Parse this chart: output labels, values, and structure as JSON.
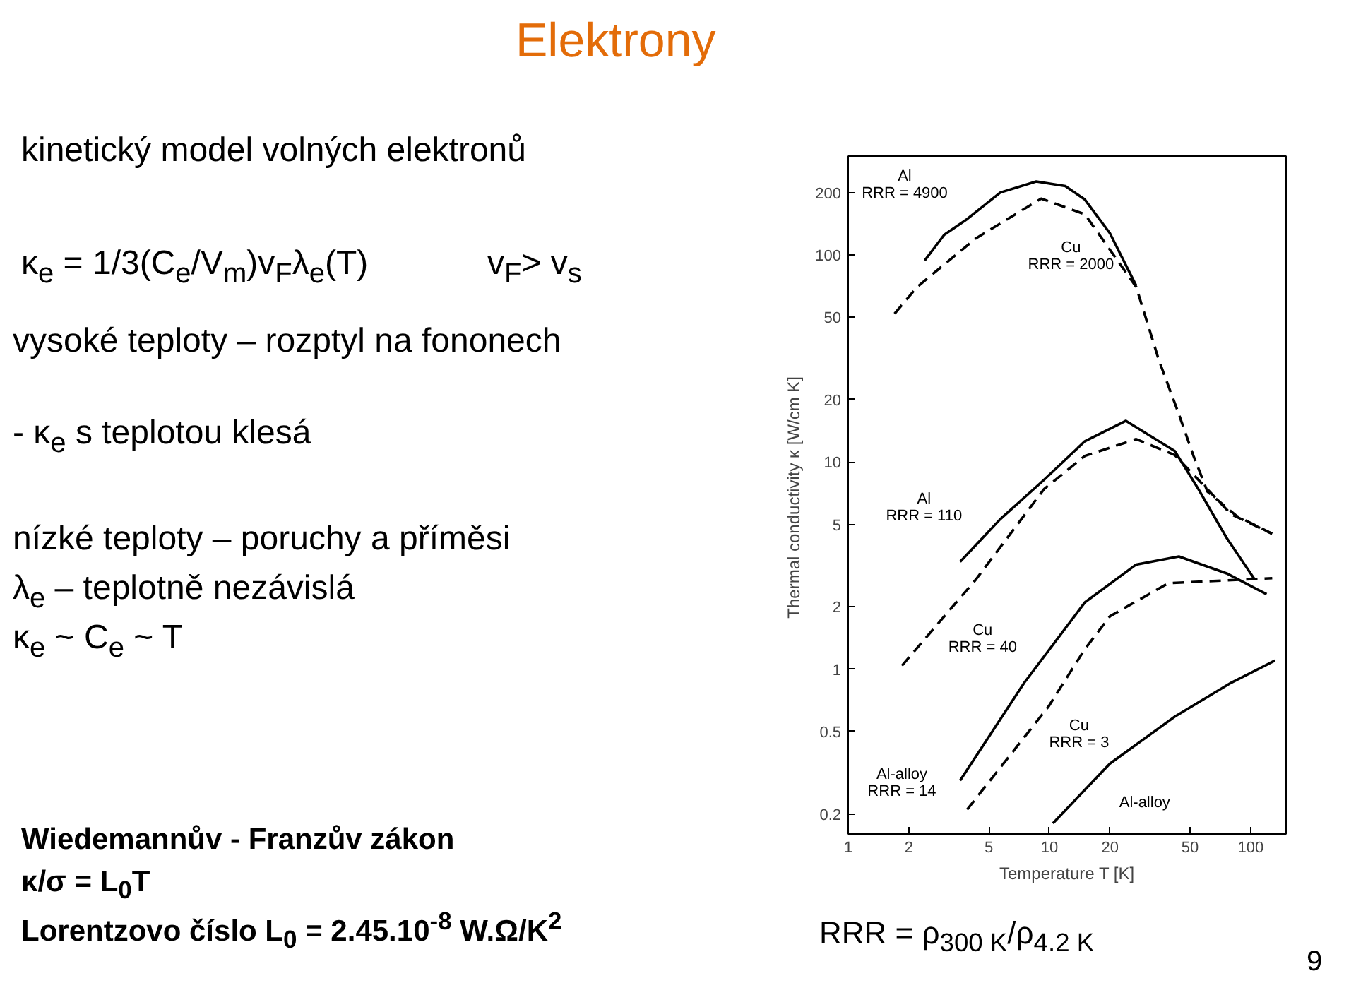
{
  "chart_data": {
    "type": "line",
    "title": "Elektrony",
    "xlabel": "Temperature T [K]",
    "ylabel": "Thermal conductivity κ  [W/cm K]",
    "log": "xy",
    "grid": false,
    "xlim": [
      1,
      150
    ],
    "ylim": [
      0.16,
      300
    ],
    "xticks": [
      1,
      2,
      5,
      10,
      20,
      50,
      100
    ],
    "yticks": [
      0.2,
      0.5,
      1,
      2,
      5,
      10,
      20,
      50,
      100,
      200
    ],
    "series": [
      {
        "name": "Al\nRRR = 4900",
        "color": "#000000",
        "line_style": "solid",
        "x": [
          2.4,
          3,
          3.9,
          5.7,
          8.6,
          12,
          15,
          20,
          27
        ],
        "values": [
          94,
          125,
          149,
          200,
          226,
          215,
          185,
          127,
          71
        ]
      },
      {
        "name": "Cu\nRRR = 2000",
        "color": "#000000",
        "line_style": "dashed",
        "x": [
          1.7,
          2.2,
          4.3,
          9.1,
          15,
          27,
          35,
          44,
          52,
          61,
          85,
          128
        ],
        "values": [
          52,
          70,
          120,
          187,
          157,
          70,
          31,
          17,
          10.7,
          7.2,
          5.5,
          4.5
        ]
      },
      {
        "name": "Al\nRRR = 110",
        "color": "#000000",
        "line_style": "solid",
        "x": [
          3.6,
          5.7,
          9.4,
          15,
          24,
          42,
          55,
          76,
          105
        ],
        "values": [
          3.3,
          5.3,
          8.2,
          12.6,
          15.8,
          11.3,
          7.4,
          4.3,
          2.7
        ]
      },
      {
        "name": "Cu\nRRR = 40",
        "color": "#000000",
        "line_style": "dashed",
        "x": [
          1.85,
          4.3,
          9.4,
          15,
          27,
          42,
          55,
          80,
          128
        ],
        "values": [
          1.04,
          2.7,
          7.4,
          10.7,
          12.9,
          10.8,
          8.2,
          5.6,
          4.5
        ]
      },
      {
        "name": "Al-alloy\nRRR = 14",
        "color": "#000000",
        "line_style": "solid",
        "x": [
          3.6,
          7.5,
          15,
          27,
          44,
          76,
          120
        ],
        "values": [
          0.29,
          0.86,
          2.1,
          3.2,
          3.5,
          2.9,
          2.3
        ]
      },
      {
        "name": "Cu\nRRR = 3",
        "color": "#000000",
        "line_style": "dashed",
        "x": [
          3.9,
          9.9,
          15,
          20,
          39,
          128
        ],
        "values": [
          0.21,
          0.66,
          1.25,
          1.8,
          2.6,
          2.75
        ]
      },
      {
        "name": "Al-alloy",
        "color": "#000000",
        "line_style": "solid",
        "x": [
          10.4,
          20,
          42,
          80,
          132
        ],
        "values": [
          0.18,
          0.35,
          0.59,
          0.86,
          1.1
        ]
      }
    ],
    "annotations": [
      "kinetický model volných elektronů",
      "κ$_{e}$ = 1/3(C$_{e}$/V$_{m}$)v$_{F}$λ$_{e}$(T)",
      "v$_{F}$> v$_{s}$",
      "vysoké teploty – rozptyl na fononech",
      "- κ$_{e}$ s teplotou klesá",
      "nízké teploty – poruchy a příměsi",
      "λ$_{e}$ – teplotně nezávislá",
      "κ$_{e}$ ~ C$_{e}$ ~ T",
      "Wiedemannův - Franzův zákon",
      "κ/σ = L$_{0}$T",
      "Lorentzovo číslo   L$_{0}$ = 2.45.10$^{-8}$ W.Ω/K$^{2}$",
      "RRR = ρ$_{300 K}$/ρ$_{4.2 K}$",
      "9"
    ]
  }
}
